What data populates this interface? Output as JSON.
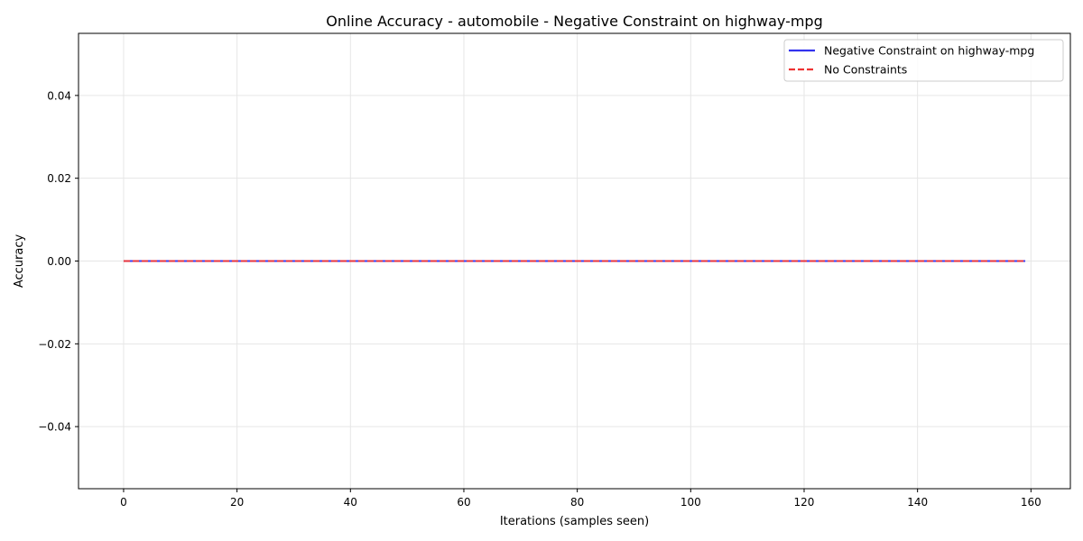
{
  "chart_data": {
    "type": "line",
    "title": "Online Accuracy - automobile - Negative Constraint on highway-mpg",
    "xlabel": "Iterations (samples seen)",
    "ylabel": "Accuracy",
    "xlim": [
      -7.95,
      166.95
    ],
    "ylim": [
      -0.055,
      0.055
    ],
    "xticks": [
      0,
      20,
      40,
      60,
      80,
      100,
      120,
      140,
      160
    ],
    "xtick_labels": [
      "0",
      "20",
      "40",
      "60",
      "80",
      "100",
      "120",
      "140",
      "160"
    ],
    "yticks": [
      0.04,
      0.02,
      0.0,
      -0.02,
      -0.04
    ],
    "ytick_labels": [
      "0.04",
      "0.02",
      "0.00",
      "−0.02",
      "−0.04"
    ],
    "grid": true,
    "legend_position": "top-right",
    "series": [
      {
        "name": "Negative Constraint on highway-mpg",
        "color": "#3333ee",
        "style": "solid",
        "x_start": 0,
        "x_end": 159,
        "y": 0.0
      },
      {
        "name": "No Constraints",
        "color": "#ee3333",
        "style": "dashed",
        "x_start": 0,
        "x_end": 159,
        "y": 0.0
      }
    ]
  }
}
